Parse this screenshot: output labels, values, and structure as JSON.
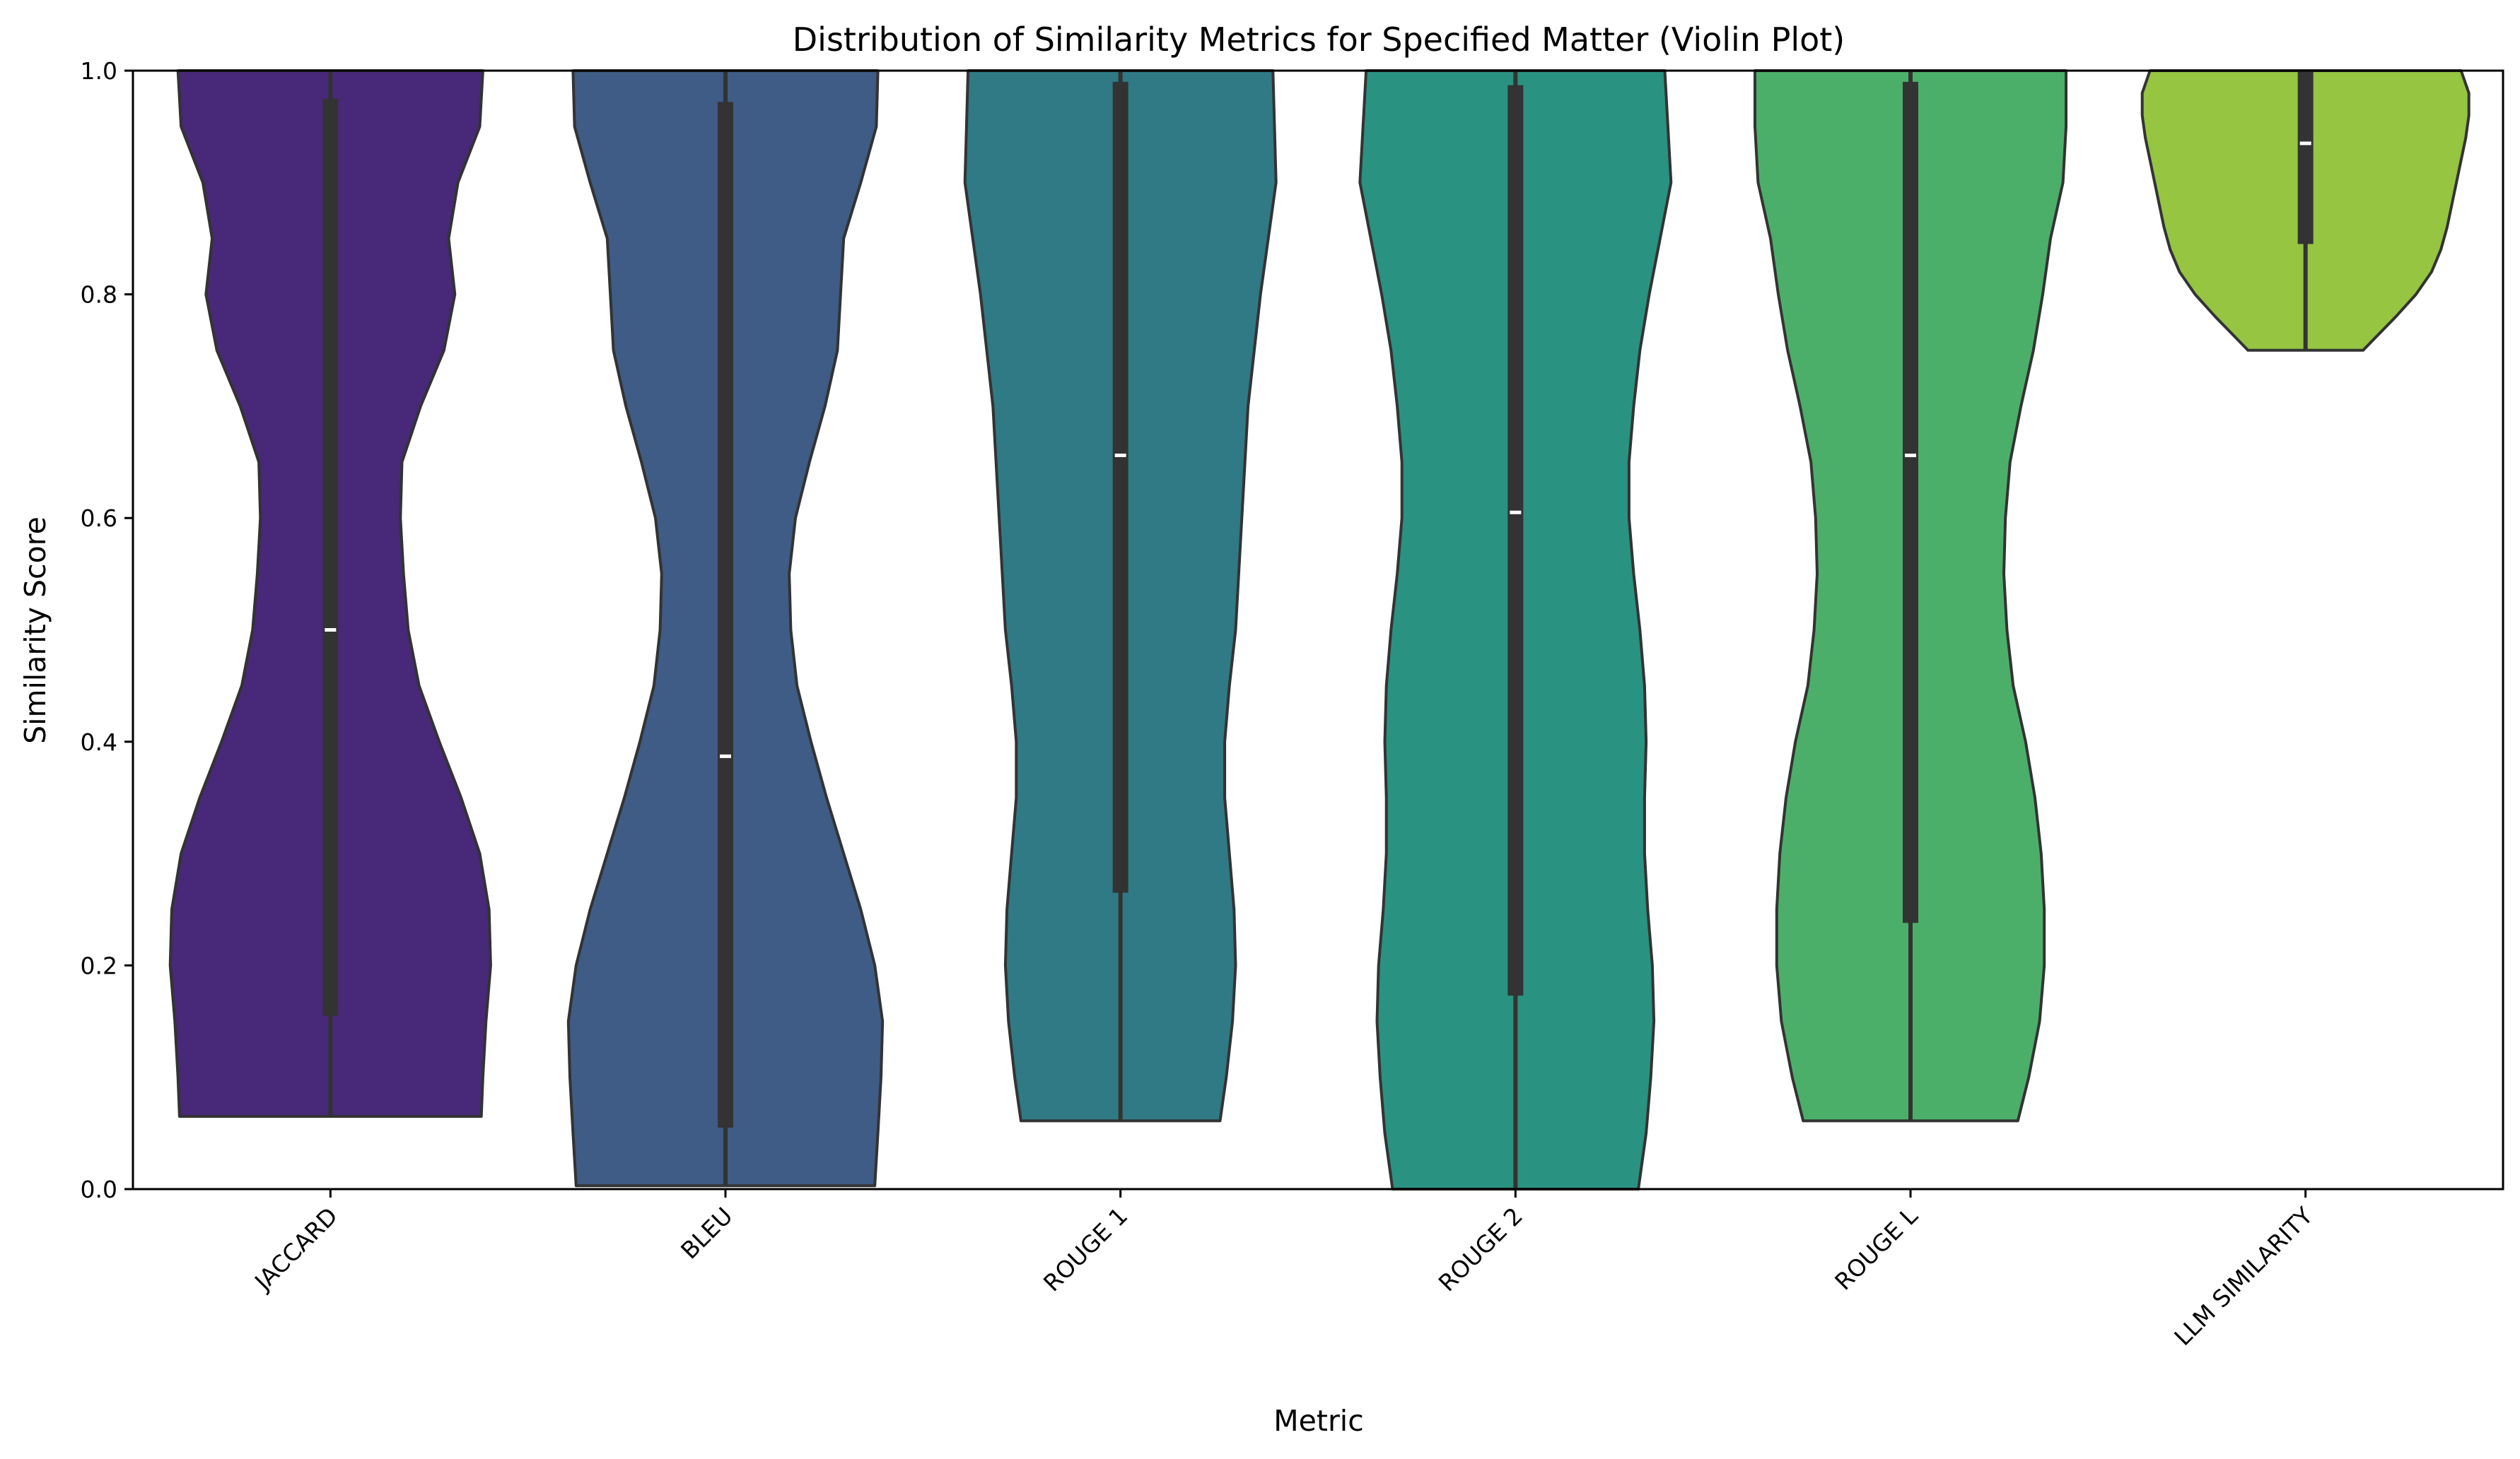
{
  "chart_data": {
    "type": "violin",
    "title": "Distribution of Similarity Metrics for Specified Matter (Violin Plot)",
    "xlabel": "Metric",
    "ylabel": "Similarity Score",
    "ylim": [
      0,
      1
    ],
    "yticks": [
      "0.0",
      "0.2",
      "0.4",
      "0.6",
      "0.8",
      "1.0"
    ],
    "categories": [
      "JACCARD",
      "BLEU",
      "ROUGE 1",
      "ROUGE 2",
      "ROUGE L",
      "LLM SIMILARITY"
    ],
    "grid": false,
    "legend": "none",
    "palette": [
      "#482878",
      "#3e5c85",
      "#2f7a85",
      "#2a9280",
      "#4caf69",
      "#95c541"
    ],
    "edge_color": "#333333",
    "series": [
      {
        "category": "JACCARD",
        "color": "#482878",
        "min": 0.065,
        "q1": 0.155,
        "median": 0.5,
        "q3": 0.975,
        "max": 1.0,
        "density": [
          [
            0.065,
            0.97
          ],
          [
            0.1,
            0.98
          ],
          [
            0.15,
            1.0
          ],
          [
            0.2,
            1.03
          ],
          [
            0.25,
            1.02
          ],
          [
            0.3,
            0.96
          ],
          [
            0.35,
            0.84
          ],
          [
            0.4,
            0.7
          ],
          [
            0.45,
            0.57
          ],
          [
            0.5,
            0.5
          ],
          [
            0.55,
            0.47
          ],
          [
            0.6,
            0.45
          ],
          [
            0.65,
            0.46
          ],
          [
            0.7,
            0.58
          ],
          [
            0.75,
            0.73
          ],
          [
            0.8,
            0.8
          ],
          [
            0.85,
            0.76
          ],
          [
            0.9,
            0.82
          ],
          [
            0.95,
            0.96
          ],
          [
            1.0,
            0.98
          ]
        ]
      },
      {
        "category": "BLEU",
        "color": "#3e5c85",
        "min": 0.003,
        "q1": 0.055,
        "median": 0.387,
        "q3": 0.972,
        "max": 1.0,
        "density": [
          [
            0.003,
            0.96
          ],
          [
            0.05,
            0.98
          ],
          [
            0.1,
            1.0
          ],
          [
            0.15,
            1.01
          ],
          [
            0.2,
            0.96
          ],
          [
            0.25,
            0.87
          ],
          [
            0.3,
            0.76
          ],
          [
            0.35,
            0.65
          ],
          [
            0.4,
            0.55
          ],
          [
            0.45,
            0.46
          ],
          [
            0.5,
            0.42
          ],
          [
            0.55,
            0.41
          ],
          [
            0.6,
            0.45
          ],
          [
            0.65,
            0.54
          ],
          [
            0.7,
            0.64
          ],
          [
            0.75,
            0.72
          ],
          [
            0.8,
            0.74
          ],
          [
            0.85,
            0.76
          ],
          [
            0.9,
            0.87
          ],
          [
            0.95,
            0.97
          ],
          [
            1.0,
            0.98
          ]
        ]
      },
      {
        "category": "ROUGE 1",
        "color": "#2f7a85",
        "min": 0.061,
        "q1": 0.265,
        "median": 0.656,
        "q3": 0.99,
        "max": 1.0,
        "density": [
          [
            0.061,
            0.64
          ],
          [
            0.1,
            0.68
          ],
          [
            0.15,
            0.72
          ],
          [
            0.2,
            0.74
          ],
          [
            0.25,
            0.73
          ],
          [
            0.3,
            0.7
          ],
          [
            0.35,
            0.67
          ],
          [
            0.4,
            0.67
          ],
          [
            0.45,
            0.7
          ],
          [
            0.5,
            0.74
          ],
          [
            0.55,
            0.76
          ],
          [
            0.6,
            0.78
          ],
          [
            0.65,
            0.8
          ],
          [
            0.7,
            0.82
          ],
          [
            0.75,
            0.86
          ],
          [
            0.8,
            0.9
          ],
          [
            0.85,
            0.95
          ],
          [
            0.9,
            1.0
          ],
          [
            0.95,
            0.99
          ],
          [
            1.0,
            0.98
          ]
        ]
      },
      {
        "category": "ROUGE 2",
        "color": "#2a9280",
        "min": 0.0,
        "q1": 0.173,
        "median": 0.605,
        "q3": 0.987,
        "max": 1.0,
        "density": [
          [
            0.0,
            0.79
          ],
          [
            0.05,
            0.84
          ],
          [
            0.1,
            0.87
          ],
          [
            0.15,
            0.89
          ],
          [
            0.2,
            0.88
          ],
          [
            0.25,
            0.85
          ],
          [
            0.3,
            0.83
          ],
          [
            0.35,
            0.83
          ],
          [
            0.4,
            0.84
          ],
          [
            0.45,
            0.83
          ],
          [
            0.5,
            0.8
          ],
          [
            0.55,
            0.76
          ],
          [
            0.6,
            0.73
          ],
          [
            0.65,
            0.73
          ],
          [
            0.7,
            0.76
          ],
          [
            0.75,
            0.8
          ],
          [
            0.8,
            0.86
          ],
          [
            0.85,
            0.93
          ],
          [
            0.9,
            1.0
          ],
          [
            0.95,
            0.98
          ],
          [
            1.0,
            0.96
          ]
        ]
      },
      {
        "category": "ROUGE L",
        "color": "#4caf69",
        "min": 0.061,
        "q1": 0.238,
        "median": 0.656,
        "q3": 0.99,
        "max": 1.0,
        "density": [
          [
            0.061,
            0.69
          ],
          [
            0.1,
            0.76
          ],
          [
            0.15,
            0.83
          ],
          [
            0.2,
            0.86
          ],
          [
            0.25,
            0.86
          ],
          [
            0.3,
            0.84
          ],
          [
            0.35,
            0.8
          ],
          [
            0.4,
            0.74
          ],
          [
            0.45,
            0.66
          ],
          [
            0.5,
            0.62
          ],
          [
            0.55,
            0.6
          ],
          [
            0.6,
            0.61
          ],
          [
            0.65,
            0.64
          ],
          [
            0.7,
            0.71
          ],
          [
            0.75,
            0.79
          ],
          [
            0.8,
            0.85
          ],
          [
            0.85,
            0.9
          ],
          [
            0.9,
            0.98
          ],
          [
            0.95,
            1.0
          ],
          [
            1.0,
            1.0
          ]
        ]
      },
      {
        "category": "LLM SIMILARITY",
        "color": "#95c541",
        "min": 0.75,
        "q1": 0.845,
        "median": 0.935,
        "q3": 1.0,
        "max": 1.0,
        "density": [
          [
            0.75,
            0.37
          ],
          [
            0.76,
            0.44
          ],
          [
            0.78,
            0.58
          ],
          [
            0.8,
            0.71
          ],
          [
            0.82,
            0.81
          ],
          [
            0.84,
            0.87
          ],
          [
            0.86,
            0.91
          ],
          [
            0.88,
            0.94
          ],
          [
            0.9,
            0.97
          ],
          [
            0.92,
            1.0
          ],
          [
            0.94,
            1.03
          ],
          [
            0.96,
            1.05
          ],
          [
            0.98,
            1.05
          ],
          [
            1.0,
            1.0
          ]
        ]
      }
    ]
  }
}
